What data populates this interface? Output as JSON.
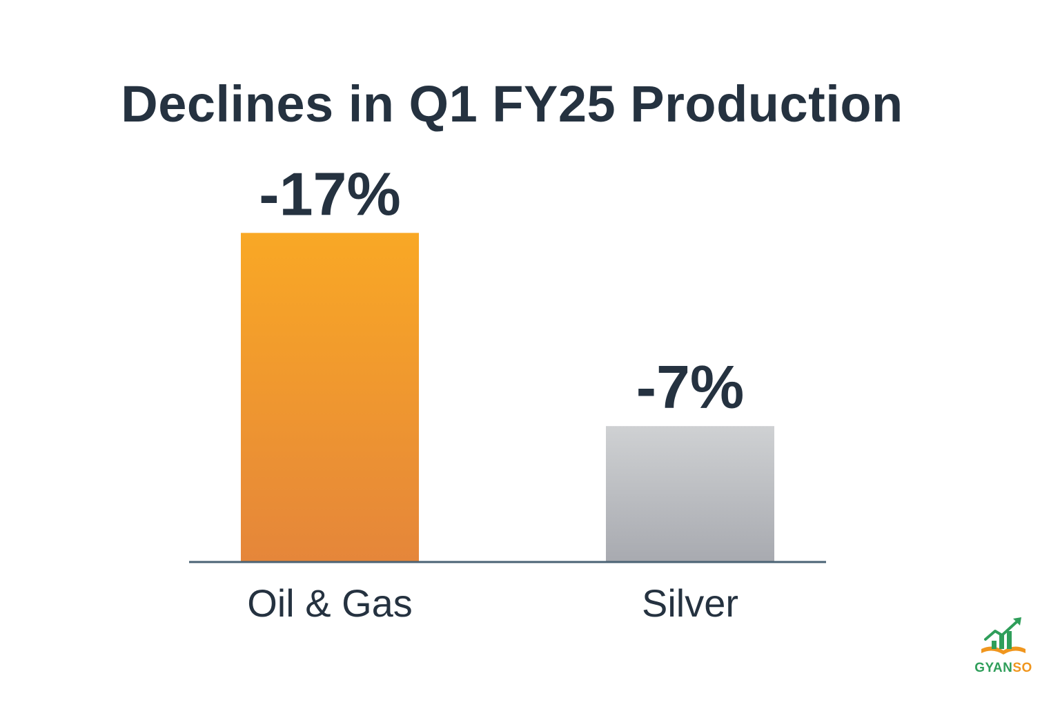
{
  "chart_data": {
    "type": "bar",
    "title": "Declines in Q1 FY25 Production",
    "xlabel": "",
    "ylabel": "",
    "categories": [
      "Oil & Gas",
      "Silver"
    ],
    "values": [
      -17,
      -7
    ],
    "value_labels": [
      "-17%",
      "-7%"
    ],
    "unit": "%",
    "bars_drawn_by_magnitude": true,
    "ylim": [
      0,
      20
    ],
    "grid": false,
    "legend": "none",
    "colors": {
      "Oil & Gas": {
        "top": "#F9A825",
        "bottom": "#E5863A"
      },
      "Silver": {
        "top": "#CFD1D3",
        "bottom": "#A8AAB0"
      },
      "baseline": "#4A6274",
      "text": "#253240"
    }
  },
  "logo": {
    "text_part_a": "GYAN",
    "text_part_b": "SO",
    "icon": "growth-chart-book-icon"
  }
}
